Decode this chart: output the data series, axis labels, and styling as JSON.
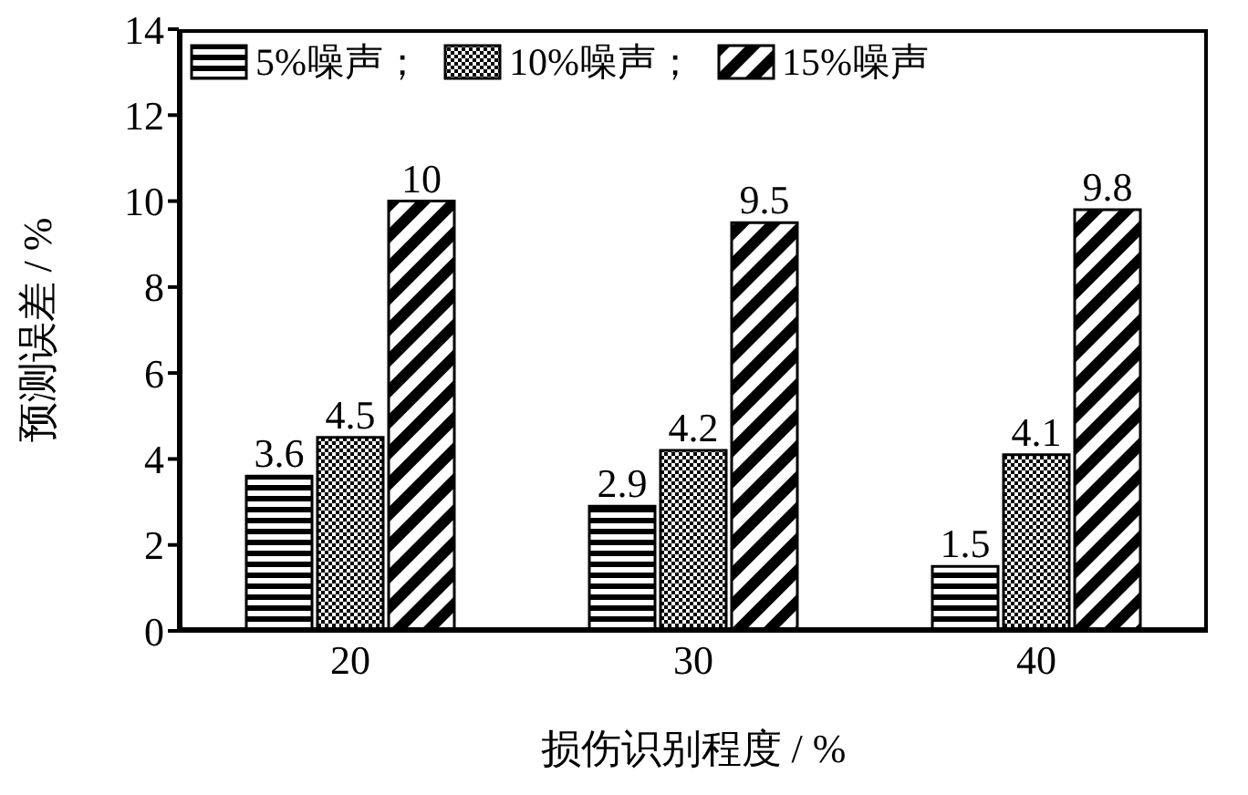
{
  "chart_data": {
    "type": "bar",
    "xlabel": "损伤识别程度 / %",
    "ylabel": "预测误差 / %",
    "categories": [
      "20",
      "30",
      "40"
    ],
    "series": [
      {
        "name": "5%噪声；",
        "color": "#000000",
        "values": [
          3.6,
          2.9,
          1.5
        ]
      },
      {
        "name": "10%噪声；",
        "color": "#000000",
        "values": [
          4.5,
          4.2,
          4.1
        ]
      },
      {
        "name": "15%噪声",
        "color": "#000000",
        "values": [
          10,
          9.5,
          9.8
        ]
      }
    ],
    "ylim": [
      0,
      14
    ],
    "yticks": [
      0,
      2,
      4,
      6,
      8,
      10,
      12,
      14
    ],
    "legend": "top left",
    "data_labels": true
  }
}
